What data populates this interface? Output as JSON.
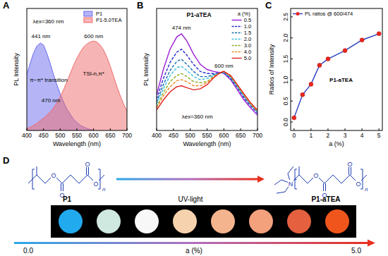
{
  "chart_data": [
    {
      "type": "area",
      "panel": "A",
      "x_label": "Wavelength (nm)",
      "y_label": "PL Intensity",
      "x": [
        400,
        410,
        420,
        430,
        441,
        450,
        460,
        470,
        480,
        490,
        500,
        510,
        520,
        530,
        540,
        550,
        560,
        570,
        580,
        590,
        600,
        610,
        620,
        630,
        640,
        650,
        660,
        670,
        680,
        690,
        700
      ],
      "series": [
        {
          "name": "P1",
          "color": "#6a6af0",
          "values": [
            0.55,
            0.66,
            0.76,
            0.83,
            0.86,
            0.84,
            0.76,
            0.66,
            0.55,
            0.45,
            0.36,
            0.28,
            0.21,
            0.16,
            0.11,
            0.08,
            0.05,
            0.035,
            0.02,
            0.01,
            0.005,
            null,
            null,
            null,
            null,
            null,
            null,
            null,
            null,
            null,
            null
          ]
        },
        {
          "name": "P1-5.0TEA",
          "color": "#f06a6a",
          "values": [
            0.02,
            0.03,
            0.05,
            0.07,
            0.1,
            0.12,
            0.15,
            0.18,
            0.22,
            0.27,
            0.33,
            0.4,
            0.48,
            0.56,
            0.64,
            0.71,
            0.77,
            0.82,
            0.85,
            0.87,
            0.88,
            0.87,
            0.84,
            0.79,
            0.72,
            0.63,
            0.53,
            0.43,
            0.34,
            0.26,
            0.19
          ]
        }
      ],
      "xlim": [
        400,
        700
      ],
      "xticks": [
        400,
        450,
        500,
        550,
        600,
        650,
        700
      ],
      "ylim": [
        0,
        1.2
      ],
      "tick_labels": "x",
      "grid": false,
      "legend": "upper right",
      "annotations": [
        "λex=360 nm",
        "441 nm",
        "600 nm",
        "π−π* transition",
        "470 nm",
        "TSI-n,π*"
      ]
    },
    {
      "type": "line",
      "panel": "B",
      "title": "P1-aTEA",
      "x_label": "Wavelength (nm)",
      "y_label": "PL Intensity",
      "legend_title": "a (%)",
      "x": [
        400,
        420,
        440,
        460,
        474,
        490,
        510,
        530,
        550,
        570,
        590,
        600,
        620,
        640,
        660,
        680,
        700
      ],
      "series": [
        {
          "name": "0.5",
          "color": "#9b1fd6",
          "line_style": "solid",
          "values": [
            0.35,
            0.6,
            0.8,
            0.92,
            0.95,
            0.88,
            0.75,
            0.65,
            0.6,
            0.58,
            0.57,
            0.56,
            0.5,
            0.4,
            0.3,
            0.22,
            0.15
          ]
        },
        {
          "name": "1.0",
          "color": "#2a2ad6",
          "line_style": "dashed",
          "values": [
            0.31,
            0.51,
            0.67,
            0.77,
            0.8,
            0.74,
            0.65,
            0.58,
            0.56,
            0.56,
            0.57,
            0.57,
            0.51,
            0.42,
            0.32,
            0.24,
            0.17
          ]
        },
        {
          "name": "1.5",
          "color": "#1a6fb0",
          "line_style": "dashed",
          "values": [
            0.28,
            0.45,
            0.59,
            0.68,
            0.7,
            0.65,
            0.58,
            0.53,
            0.53,
            0.55,
            0.57,
            0.57,
            0.52,
            0.43,
            0.33,
            0.25,
            0.18
          ]
        },
        {
          "name": "2.0",
          "color": "#3fbfdf",
          "line_style": "dashed",
          "values": [
            0.26,
            0.41,
            0.54,
            0.62,
            0.63,
            0.59,
            0.53,
            0.5,
            0.51,
            0.54,
            0.57,
            0.57,
            0.52,
            0.43,
            0.34,
            0.25,
            0.18
          ]
        },
        {
          "name": "3.0",
          "color": "#8ab020",
          "line_style": "dashed",
          "values": [
            0.23,
            0.37,
            0.48,
            0.54,
            0.56,
            0.53,
            0.48,
            0.47,
            0.48,
            0.53,
            0.57,
            0.58,
            0.53,
            0.44,
            0.35,
            0.26,
            0.19
          ]
        },
        {
          "name": "4.0",
          "color": "#f08a20",
          "line_style": "dashed",
          "values": [
            0.22,
            0.34,
            0.43,
            0.49,
            0.5,
            0.48,
            0.44,
            0.44,
            0.47,
            0.53,
            0.57,
            0.58,
            0.54,
            0.45,
            0.35,
            0.26,
            0.19
          ]
        },
        {
          "name": "5.0",
          "color": "#e02020",
          "line_style": "solid",
          "values": [
            0.2,
            0.3,
            0.38,
            0.43,
            0.44,
            0.42,
            0.4,
            0.41,
            0.45,
            0.52,
            0.57,
            0.58,
            0.54,
            0.45,
            0.36,
            0.27,
            0.2
          ]
        }
      ],
      "xlim": [
        400,
        700
      ],
      "xticks": [
        400,
        450,
        500,
        550,
        600,
        650,
        700
      ],
      "ylim": [
        0,
        1.2
      ],
      "tick_labels": "x",
      "grid": false,
      "legend": "upper right",
      "annotations": [
        "474 nm",
        "600 nm",
        "λex=360 nm"
      ]
    },
    {
      "type": "line",
      "panel": "C",
      "x_label": "a (%)",
      "y_label": "Ratios of Intensity",
      "x": [
        0,
        0.5,
        1,
        1.5,
        2,
        3,
        4,
        5
      ],
      "series": [
        {
          "name": "PL ratios @ 600/474",
          "color": "#2b3fbf",
          "marker": "circle",
          "line_style": "solid",
          "values": [
            0.1,
            0.65,
            0.9,
            1.35,
            1.5,
            1.7,
            1.95,
            2.1
          ]
        }
      ],
      "xlim": [
        -0.2,
        5.2
      ],
      "xticks": [
        0,
        1,
        2,
        3,
        4,
        5
      ],
      "ylim": [
        -0.2,
        2.7
      ],
      "yticks": [
        {
          "value": 0,
          "label": "0.0"
        },
        0.5,
        {
          "value": 1,
          "label": "1.0"
        },
        1.5,
        {
          "value": 2,
          "label": "2.0"
        },
        2.5
      ],
      "grid": false,
      "legend": "upper left",
      "annotations": [
        "P1-aTEA"
      ]
    }
  ],
  "panel_d": {
    "panel": "D",
    "left_label": "P1",
    "arrow_label": "UV-light",
    "right_label": "P1-aTEA",
    "atom_labels": {
      "oxygen": "O",
      "nitrogen": "N",
      "charge": "+",
      "repeat": "n"
    },
    "colors": [
      "#22aaee",
      "#cfe8e0",
      "#f8f8f8",
      "#f6d2ae",
      "#f4b48e",
      "#f3a07c",
      "#e4603e",
      "#f0561c"
    ],
    "scale_start": "0.0",
    "scale_label": "a (%)",
    "scale_end": "5.0"
  }
}
